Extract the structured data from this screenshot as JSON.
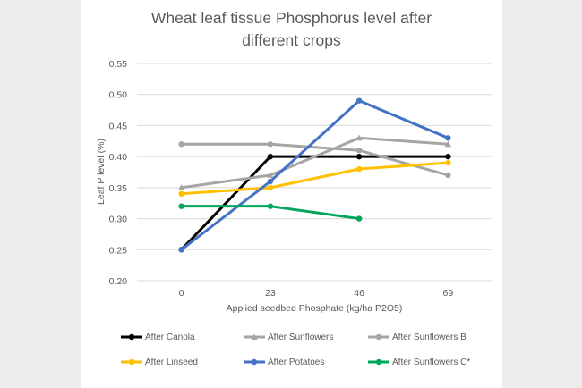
{
  "chart_data": {
    "type": "line",
    "title": "Wheat leaf tissue Phosphorus level after different crops",
    "title_lines": [
      "Wheat leaf tissue Phosphorus level after",
      "different crops"
    ],
    "xlabel": "Applied seedbed Phosphate (kg/ha P2O5)",
    "ylabel": "Leaf P level (%)",
    "categories": [
      "0",
      "23",
      "46",
      "69"
    ],
    "ylim": [
      0.2,
      0.55
    ],
    "yticks": [
      "0.20",
      "0.25",
      "0.30",
      "0.35",
      "0.40",
      "0.45",
      "0.50",
      "0.55"
    ],
    "grid": true,
    "legend_position": "bottom",
    "series": [
      {
        "name": "After Canola",
        "color": "#000000",
        "marker": "circle",
        "values": [
          0.25,
          0.4,
          0.4,
          0.4
        ]
      },
      {
        "name": "After Sunflowers",
        "color": "#a5a5a5",
        "marker": "triangle",
        "values": [
          0.35,
          0.37,
          0.43,
          0.42
        ]
      },
      {
        "name": "After Sunflowers B",
        "color": "#a5a5a5",
        "marker": "circle",
        "values": [
          0.42,
          0.42,
          0.41,
          0.37
        ]
      },
      {
        "name": "After Linseed",
        "color": "#ffc000",
        "marker": "circle",
        "values": [
          0.34,
          0.35,
          0.38,
          0.39
        ]
      },
      {
        "name": "After Potatoes",
        "color": "#4472c4",
        "marker": "circle",
        "values": [
          0.25,
          0.36,
          0.49,
          0.43
        ]
      },
      {
        "name": "After Sunflowers C*",
        "color": "#00a65a",
        "marker": "circle",
        "values": [
          0.32,
          0.32,
          0.3,
          null
        ]
      }
    ]
  }
}
